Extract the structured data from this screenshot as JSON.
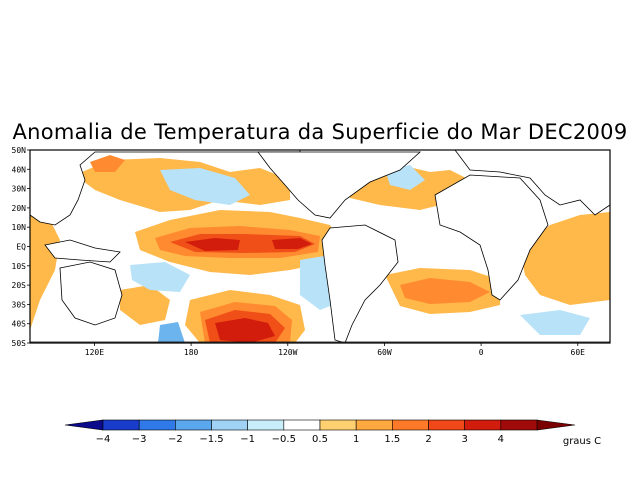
{
  "title": "Anomalia de Temperatura da Superficie do Mar DEC2009",
  "map": {
    "lat_labels": [
      "50N",
      "40N",
      "30N",
      "20N",
      "10N",
      "EQ",
      "10S",
      "20S",
      "30S",
      "40S",
      "50S"
    ],
    "lon_labels": [
      "120E",
      "180",
      "120W",
      "60W",
      "0",
      "60E"
    ],
    "lon_values": [
      120,
      180,
      240,
      300,
      360,
      420
    ],
    "lon_range": [
      80,
      440
    ],
    "lat_range": [
      -50,
      50
    ]
  },
  "colorbar": {
    "unit_label": "graus C",
    "tick_labels": [
      "-4",
      "-3",
      "-2",
      "-1.5",
      "-1",
      "-0.5",
      "0.5",
      "1",
      "1.5",
      "2",
      "3",
      "4"
    ],
    "colors": [
      "#0a0a8a",
      "#1a3ccc",
      "#2f7ae8",
      "#5aa7ee",
      "#9fd2f4",
      "#c8eefa",
      "#ffffff",
      "#ffd070",
      "#ffaa40",
      "#ff7a28",
      "#f04818",
      "#d21c0c",
      "#a00a0a",
      "#7a0000"
    ]
  },
  "palette": {
    "weak_warm": "#ffb84a",
    "mod_warm": "#ff8a30",
    "strong_warm": "#f05018",
    "very_warm": "#d21c0c",
    "extreme_warm": "#a00808",
    "weak_cold": "#b8e2f7",
    "mod_cold": "#6cb4ee",
    "strong_cold": "#2f7ae8",
    "land": "#ffffff"
  }
}
